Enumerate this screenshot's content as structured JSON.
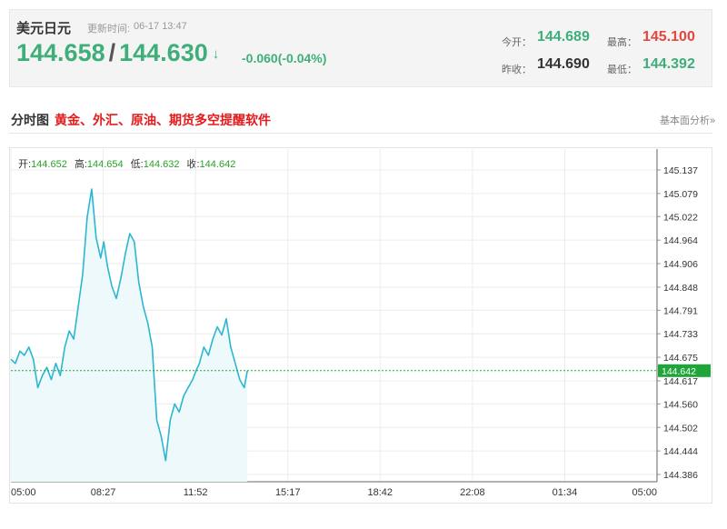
{
  "header": {
    "pair_name": "美元日元",
    "update_label": "更新时间:",
    "update_time": "06-17 13:47",
    "price_bid": "144.658",
    "price_sep": "/",
    "price_ask": "144.630",
    "arrow": "↓",
    "change": "-0.060(-0.04%)",
    "open_label": "今开：",
    "open_value": "144.689",
    "high_label": "最高：",
    "high_value": "145.100",
    "prev_close_label": "昨收：",
    "prev_close_value": "144.690",
    "low_label": "最低：",
    "low_value": "144.392"
  },
  "section": {
    "title": "分时图",
    "promo": "黄金、外汇、原油、期货多空提醒软件",
    "basic_link": "基本面分析»"
  },
  "ohlc": {
    "open_label": "开:",
    "open": "144.652",
    "high_label": "高:",
    "high": "144.654",
    "low_label": "低:",
    "low": "144.632",
    "close_label": "收:",
    "close": "144.642"
  },
  "colors": {
    "up_green": "#3eae7a",
    "down_red": "#e8453c",
    "line": "#2bb6d1",
    "area_fill": "#eef9fc",
    "current_marker": "#1fa53a"
  },
  "chart_data": {
    "type": "area",
    "y_ticks": [
      "145.137",
      "145.079",
      "145.022",
      "144.964",
      "144.906",
      "144.848",
      "144.791",
      "144.733",
      "144.675",
      "144.617",
      "144.560",
      "144.502",
      "144.444",
      "144.386"
    ],
    "x_ticks": [
      "05:00",
      "08:27",
      "11:52",
      "15:17",
      "18:42",
      "22:08",
      "01:34",
      "05:00"
    ],
    "ylim": [
      144.386,
      145.137
    ],
    "current_value": 144.642,
    "current_label": "144.642",
    "grid": true,
    "series": [
      {
        "x": [
          "05:00",
          "05:10",
          "05:20",
          "05:30",
          "05:40",
          "05:50",
          "06:00",
          "06:10",
          "06:20",
          "06:30",
          "06:40",
          "06:50",
          "07:00",
          "07:10",
          "07:20",
          "07:30",
          "07:40",
          "07:50",
          "08:00",
          "08:10",
          "08:20",
          "08:27",
          "08:35",
          "08:45",
          "08:55",
          "09:05",
          "09:15",
          "09:25",
          "09:35",
          "09:45",
          "09:55",
          "10:05",
          "10:15",
          "10:25",
          "10:35",
          "10:45",
          "10:55",
          "11:05",
          "11:15",
          "11:25",
          "11:35",
          "11:45",
          "11:52",
          "12:00",
          "12:10",
          "12:20",
          "12:30",
          "12:40",
          "12:50",
          "13:00",
          "13:10",
          "13:20",
          "13:30",
          "13:40",
          "13:47"
        ],
        "values": [
          144.67,
          144.66,
          144.69,
          144.68,
          144.7,
          144.67,
          144.6,
          144.63,
          144.65,
          144.62,
          144.66,
          144.63,
          144.7,
          144.74,
          144.72,
          144.8,
          144.88,
          145.02,
          145.09,
          144.97,
          144.92,
          144.96,
          144.9,
          144.85,
          144.82,
          144.87,
          144.93,
          144.98,
          144.96,
          144.86,
          144.8,
          144.76,
          144.7,
          144.52,
          144.48,
          144.42,
          144.52,
          144.56,
          144.54,
          144.58,
          144.6,
          144.62,
          144.64,
          144.66,
          144.7,
          144.68,
          144.72,
          144.75,
          144.73,
          144.77,
          144.7,
          144.66,
          144.62,
          144.6,
          144.642
        ]
      }
    ]
  }
}
